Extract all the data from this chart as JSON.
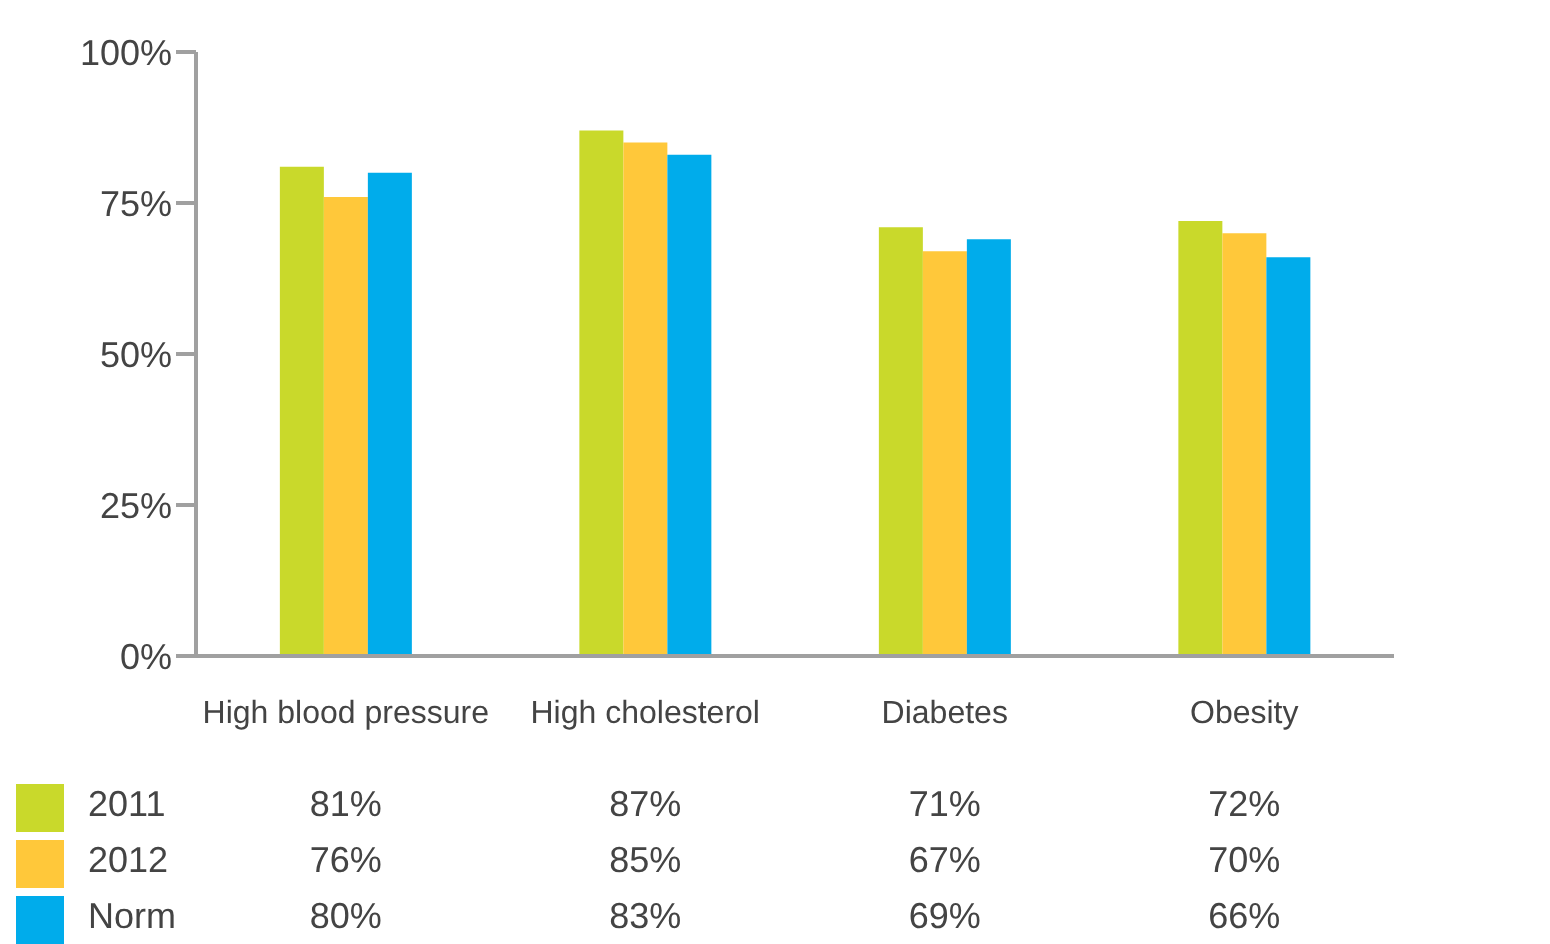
{
  "chart_data": {
    "type": "bar",
    "categories": [
      "High blood pressure",
      "High cholesterol",
      "Diabetes",
      "Obesity"
    ],
    "series": [
      {
        "name": "2011",
        "color": "#c9d92b",
        "values": [
          81,
          87,
          71,
          72
        ],
        "value_labels": [
          "81%",
          "87%",
          "71%",
          "72%"
        ]
      },
      {
        "name": "2012",
        "color": "#ffc83a",
        "values": [
          76,
          85,
          67,
          70
        ],
        "value_labels": [
          "76%",
          "85%",
          "67%",
          "70%"
        ]
      },
      {
        "name": "Norm",
        "color": "#00aceb",
        "values": [
          80,
          83,
          69,
          66
        ],
        "value_labels": [
          "80%",
          "83%",
          "69%",
          "66%"
        ]
      }
    ],
    "ylim": [
      0,
      100
    ],
    "yticks": [
      {
        "value": 0,
        "label": "0%"
      },
      {
        "value": 25,
        "label": "25%"
      },
      {
        "value": 50,
        "label": "50%"
      },
      {
        "value": 75,
        "label": "75%"
      },
      {
        "value": 100,
        "label": "100%"
      }
    ],
    "grid": false,
    "legend": "bottom left"
  }
}
